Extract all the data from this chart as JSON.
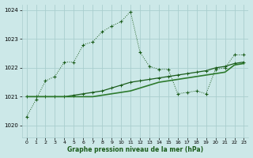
{
  "title": "Graphe pression niveau de la mer (hPa)",
  "bg_color": "#cce8e8",
  "grid_color": "#aacece",
  "line_color1": "#1a5c1a",
  "line_color2": "#1a5c1a",
  "line_color3": "#2d7a2d",
  "xlim": [
    -0.5,
    23.5
  ],
  "ylim": [
    1019.6,
    1024.2
  ],
  "xticks": [
    0,
    1,
    2,
    3,
    4,
    5,
    6,
    7,
    8,
    9,
    10,
    11,
    12,
    13,
    14,
    15,
    16,
    17,
    18,
    19,
    20,
    21,
    22,
    23
  ],
  "yticks": [
    1020,
    1021,
    1022,
    1023,
    1024
  ],
  "s1_x": [
    0,
    1,
    2,
    3,
    4,
    5,
    6,
    7,
    8,
    9,
    10,
    11,
    12,
    13,
    14,
    15,
    16,
    17,
    18,
    19,
    20,
    21,
    22,
    23
  ],
  "s1_y": [
    1020.3,
    1020.9,
    1021.55,
    1021.7,
    1022.2,
    1022.2,
    1022.8,
    1022.9,
    1023.25,
    1023.45,
    1023.6,
    1023.95,
    1022.55,
    1022.05,
    1021.95,
    1021.95,
    1021.1,
    1021.15,
    1021.2,
    1021.1,
    1021.95,
    1022.0,
    1022.45,
    1022.45
  ],
  "s2_x": [
    0,
    1,
    2,
    3,
    4,
    5,
    6,
    7,
    8,
    9,
    10,
    11,
    12,
    13,
    14,
    15,
    16,
    17,
    18,
    19,
    20,
    21,
    22,
    23
  ],
  "s2_y": [
    1021.0,
    1021.0,
    1021.0,
    1021.0,
    1021.0,
    1021.05,
    1021.1,
    1021.15,
    1021.2,
    1021.3,
    1021.4,
    1021.5,
    1021.55,
    1021.6,
    1021.65,
    1021.7,
    1021.75,
    1021.8,
    1021.85,
    1021.9,
    1022.0,
    1022.05,
    1022.15,
    1022.2
  ],
  "s3_x": [
    0,
    1,
    2,
    3,
    4,
    5,
    6,
    7,
    8,
    9,
    10,
    11,
    12,
    13,
    14,
    15,
    16,
    17,
    18,
    19,
    20,
    21,
    22,
    23
  ],
  "s3_y": [
    1021.0,
    1021.0,
    1021.0,
    1021.0,
    1021.0,
    1021.0,
    1021.0,
    1021.0,
    1021.05,
    1021.1,
    1021.15,
    1021.2,
    1021.3,
    1021.4,
    1021.5,
    1021.55,
    1021.6,
    1021.65,
    1021.7,
    1021.75,
    1021.8,
    1021.85,
    1022.1,
    1022.15
  ]
}
